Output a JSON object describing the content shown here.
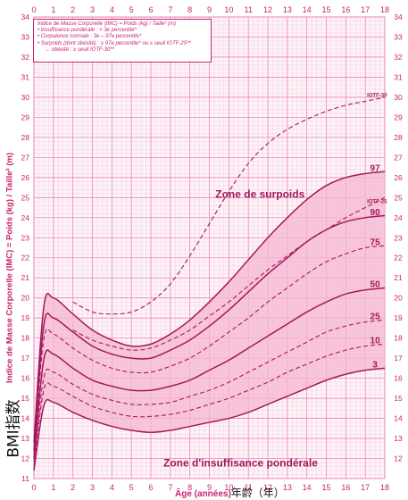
{
  "chart_data": {
    "type": "line",
    "xlabel": "Âge (années)",
    "xlabel_note": "年龄（年）",
    "ylabel": "Indice de Masse Corporelle (IMC) = Poids (kg) / Taille² (m)",
    "ylabel_note": "BMI指数",
    "xlim": [
      0,
      18
    ],
    "ylim": [
      11,
      34
    ],
    "x_ticks": [
      0,
      1,
      2,
      3,
      4,
      5,
      6,
      7,
      8,
      9,
      10,
      11,
      12,
      13,
      14,
      15,
      16,
      17,
      18
    ],
    "y_ticks_left": [
      11,
      12,
      13,
      14,
      15,
      16,
      17,
      18,
      19,
      20,
      21,
      22,
      23,
      24,
      25,
      26,
      27,
      28,
      29,
      30,
      31,
      32,
      33,
      34
    ],
    "y_ticks_right": [
      12,
      13,
      14,
      15,
      16,
      17,
      18,
      19,
      20,
      21,
      22,
      23,
      24,
      25,
      26,
      27,
      28,
      29,
      30,
      31,
      32,
      33,
      34
    ],
    "grid": true,
    "legend_lines": [
      "Indice de Masse Corporelle (IMC) = Poids (kg) / Taille² (m)",
      "• Insuffisance pondérale : < 3e percentile*",
      "• Corpulence normale : 3e – 97e percentile*",
      "• Surpoids (dont obésité) : ≥ 97e percentile* ou ≥ seuil IOTF-25**",
      "→ obésité : ≥ seuil IOTF-30**"
    ],
    "annotations": [
      "Zone de surpoids",
      "Zone d'insuffisance pondérale"
    ],
    "series": [
      {
        "name": "97",
        "style": "solid",
        "x": [
          0,
          0.5,
          1,
          2,
          3,
          4,
          5,
          6,
          7,
          8,
          9,
          10,
          11,
          12,
          13,
          14,
          15,
          16,
          17,
          18
        ],
        "values": [
          12.8,
          19.5,
          20.0,
          19.2,
          18.4,
          17.9,
          17.6,
          17.7,
          18.2,
          18.9,
          19.8,
          20.8,
          21.9,
          23.0,
          24.0,
          24.9,
          25.6,
          26.0,
          26.2,
          26.3
        ]
      },
      {
        "name": "90",
        "style": "solid",
        "x": [
          0,
          0.5,
          1,
          2,
          3,
          4,
          5,
          6,
          7,
          8,
          9,
          10,
          11,
          12,
          13,
          14,
          15,
          16,
          17,
          18
        ],
        "values": [
          12.4,
          18.6,
          19.0,
          18.3,
          17.6,
          17.2,
          17.0,
          17.0,
          17.4,
          17.9,
          18.6,
          19.4,
          20.3,
          21.2,
          22.0,
          22.8,
          23.4,
          23.8,
          24.0,
          24.1
        ]
      },
      {
        "name": "75",
        "style": "dashed",
        "x": [
          0,
          0.5,
          1,
          2,
          3,
          4,
          5,
          6,
          7,
          8,
          9,
          10,
          11,
          12,
          13,
          14,
          15,
          16,
          17,
          18
        ],
        "values": [
          12.2,
          17.9,
          18.2,
          17.5,
          16.9,
          16.5,
          16.3,
          16.3,
          16.6,
          17.0,
          17.6,
          18.3,
          19.0,
          19.8,
          20.5,
          21.2,
          21.8,
          22.2,
          22.5,
          22.6
        ]
      },
      {
        "name": "50",
        "style": "solid",
        "x": [
          0,
          0.5,
          1,
          2,
          3,
          4,
          5,
          6,
          7,
          8,
          9,
          10,
          11,
          12,
          13,
          14,
          15,
          16,
          17,
          18
        ],
        "values": [
          12.0,
          16.9,
          17.2,
          16.5,
          15.9,
          15.6,
          15.4,
          15.4,
          15.6,
          15.9,
          16.4,
          16.9,
          17.5,
          18.1,
          18.7,
          19.3,
          19.8,
          20.2,
          20.4,
          20.5
        ]
      },
      {
        "name": "25",
        "style": "dashed",
        "x": [
          0,
          0.5,
          1,
          2,
          3,
          4,
          5,
          6,
          7,
          8,
          9,
          10,
          11,
          12,
          13,
          14,
          15,
          16,
          17,
          18
        ],
        "values": [
          11.8,
          16.0,
          16.3,
          15.7,
          15.2,
          14.9,
          14.7,
          14.7,
          14.8,
          15.1,
          15.4,
          15.8,
          16.3,
          16.8,
          17.3,
          17.8,
          18.3,
          18.6,
          18.8,
          18.9
        ]
      },
      {
        "name": "10",
        "style": "dashed",
        "x": [
          0,
          0.5,
          1,
          2,
          3,
          4,
          5,
          6,
          7,
          8,
          9,
          10,
          11,
          12,
          13,
          14,
          15,
          16,
          17,
          18
        ],
        "values": [
          11.6,
          15.4,
          15.6,
          15.1,
          14.6,
          14.3,
          14.1,
          14.1,
          14.2,
          14.4,
          14.7,
          15.0,
          15.4,
          15.8,
          16.3,
          16.7,
          17.1,
          17.4,
          17.6,
          17.7
        ]
      },
      {
        "name": "3",
        "style": "solid",
        "x": [
          0,
          0.5,
          1,
          2,
          3,
          4,
          5,
          6,
          7,
          8,
          9,
          10,
          11,
          12,
          13,
          14,
          15,
          16,
          17,
          18
        ],
        "values": [
          11.4,
          14.6,
          14.8,
          14.3,
          13.9,
          13.6,
          13.4,
          13.3,
          13.4,
          13.6,
          13.8,
          14.0,
          14.3,
          14.7,
          15.1,
          15.5,
          15.9,
          16.2,
          16.4,
          16.5
        ]
      },
      {
        "name": "IOTF-30",
        "style": "dashed",
        "x": [
          2,
          3,
          4,
          5,
          6,
          7,
          8,
          9,
          10,
          11,
          12,
          13,
          14,
          15,
          16,
          17,
          18
        ],
        "values": [
          19.8,
          19.3,
          19.2,
          19.3,
          19.8,
          20.7,
          22.1,
          23.7,
          25.3,
          26.7,
          27.7,
          28.4,
          28.9,
          29.3,
          29.6,
          29.8,
          30.0
        ]
      },
      {
        "name": "IOTF-25",
        "style": "dashed",
        "x": [
          2,
          3,
          4,
          5,
          6,
          7,
          8,
          9,
          10,
          11,
          12,
          13,
          14,
          15,
          16,
          17,
          18
        ],
        "values": [
          18.4,
          17.9,
          17.6,
          17.4,
          17.5,
          17.9,
          18.4,
          19.1,
          19.8,
          20.6,
          21.4,
          22.1,
          22.8,
          23.4,
          24.0,
          24.5,
          25.0
        ]
      }
    ],
    "series_labels": {
      "97": {
        "text": "97",
        "color": "#a3195b"
      },
      "90": {
        "text": "90",
        "color": "#a3195b"
      },
      "75": {
        "text": "75",
        "color": "#a3195b"
      },
      "50": {
        "text": "50",
        "color": "#a3195b"
      },
      "25": {
        "text": "25",
        "color": "#a3195b"
      },
      "10": {
        "text": "10",
        "color": "#a3195b"
      },
      "3": {
        "text": "3",
        "color": "#a3195b"
      },
      "IOTF-30": {
        "text": "IOTF-30",
        "color": "#a3195b"
      },
      "IOTF-25": {
        "text": "IOTF-25",
        "color": "#a3195b"
      }
    },
    "colors": {
      "grid_major": "#e887b3",
      "grid_minor": "#f6cde0",
      "band_fill": "#f5b7d2",
      "line": "#a3195b",
      "text": "#c8246e"
    }
  }
}
